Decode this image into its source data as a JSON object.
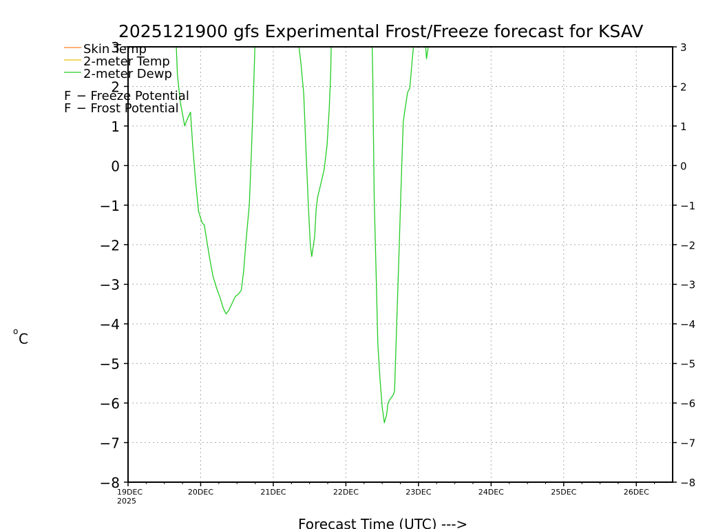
{
  "chart_data": {
    "type": "line",
    "title": "2025121900 gfs Experimental Frost/Freeze forecast for KSAV",
    "xlabel": "Forecast Time (UTC) --->",
    "ylabel_unit": "C",
    "ylabel_degree": "o",
    "ylim": [
      -8,
      3
    ],
    "xlim": [
      0,
      7.5
    ],
    "y_ticks": [
      3,
      2,
      1,
      0,
      -1,
      -2,
      -3,
      -4,
      -5,
      -6,
      -7,
      -8
    ],
    "y_tick_labels": [
      "3",
      "2",
      "1",
      "0",
      "−1",
      "−2",
      "−3",
      "−4",
      "−5",
      "−6",
      "−7",
      "−8"
    ],
    "x_ticks": [
      {
        "x": 0,
        "label": "19DEC",
        "sublabel": "2025"
      },
      {
        "x": 1,
        "label": "20DEC"
      },
      {
        "x": 2,
        "label": "21DEC"
      },
      {
        "x": 3,
        "label": "22DEC"
      },
      {
        "x": 4,
        "label": "23DEC"
      },
      {
        "x": 5,
        "label": "24DEC"
      },
      {
        "x": 6,
        "label": "25DEC"
      },
      {
        "x": 7,
        "label": "26DEC"
      }
    ],
    "grid": true,
    "legend": [
      {
        "label": "Skin Temp",
        "color": "#ff7f27"
      },
      {
        "label": "2-meter Temp",
        "color": "#e8c000"
      },
      {
        "label": "2-meter Dewp",
        "color": "#22cc22"
      }
    ],
    "potential_legend": [
      {
        "marker": "F",
        "label": " − Freeze Potential",
        "color": "#cc2299"
      },
      {
        "marker": "F",
        "label": " − Frost Potential",
        "color": "#5555ff"
      }
    ],
    "series": [
      {
        "name": "2-meter Dewp",
        "color": "#22cc22",
        "segments": [
          [
            [
              0.66,
              3.2
            ],
            [
              0.68,
              2.3
            ],
            [
              0.72,
              1.6
            ],
            [
              0.78,
              1.0
            ],
            [
              0.81,
              1.15
            ],
            [
              0.86,
              1.35
            ],
            [
              0.89,
              0.5
            ],
            [
              0.93,
              -0.4
            ],
            [
              0.97,
              -1.15
            ],
            [
              1.02,
              -1.45
            ],
            [
              1.05,
              -1.5
            ],
            [
              1.12,
              -2.3
            ],
            [
              1.17,
              -2.8
            ],
            [
              1.22,
              -3.1
            ],
            [
              1.27,
              -3.35
            ],
            [
              1.31,
              -3.6
            ],
            [
              1.35,
              -3.75
            ],
            [
              1.39,
              -3.65
            ],
            [
              1.44,
              -3.45
            ],
            [
              1.48,
              -3.3
            ],
            [
              1.52,
              -3.25
            ],
            [
              1.56,
              -3.15
            ],
            [
              1.59,
              -2.7
            ],
            [
              1.63,
              -1.8
            ],
            [
              1.67,
              -1.0
            ],
            [
              1.7,
              0.4
            ],
            [
              1.73,
              2.0
            ],
            [
              1.75,
              3.2
            ]
          ],
          [
            [
              2.34,
              3.2
            ],
            [
              2.38,
              2.6
            ],
            [
              2.42,
              1.8
            ],
            [
              2.45,
              0.4
            ],
            [
              2.48,
              -0.9
            ],
            [
              2.51,
              -2.0
            ],
            [
              2.53,
              -2.3
            ],
            [
              2.57,
              -1.8
            ],
            [
              2.59,
              -1.1
            ],
            [
              2.61,
              -0.8
            ],
            [
              2.65,
              -0.5
            ],
            [
              2.7,
              -0.1
            ],
            [
              2.74,
              0.5
            ],
            [
              2.77,
              1.4
            ],
            [
              2.79,
              2.3
            ],
            [
              2.8,
              3.2
            ]
          ],
          [
            [
              3.36,
              3.2
            ],
            [
              3.37,
              2.3
            ],
            [
              3.39,
              -0.8
            ],
            [
              3.42,
              -3.0
            ],
            [
              3.44,
              -4.5
            ],
            [
              3.47,
              -5.4
            ],
            [
              3.5,
              -6.1
            ],
            [
              3.53,
              -6.5
            ],
            [
              3.56,
              -6.3
            ],
            [
              3.58,
              -6.0
            ],
            [
              3.61,
              -5.9
            ],
            [
              3.65,
              -5.8
            ],
            [
              3.67,
              -5.7
            ],
            [
              3.7,
              -4.0
            ],
            [
              3.73,
              -2.3
            ],
            [
              3.76,
              -0.5
            ],
            [
              3.79,
              1.1
            ],
            [
              3.82,
              1.5
            ],
            [
              3.85,
              1.85
            ],
            [
              3.88,
              1.95
            ],
            [
              3.91,
              2.6
            ],
            [
              3.94,
              3.2
            ]
          ],
          [
            [
              4.09,
              3.2
            ],
            [
              4.1,
              2.95
            ],
            [
              4.11,
              2.7
            ],
            [
              4.13,
              2.95
            ],
            [
              4.14,
              3.2
            ]
          ]
        ]
      }
    ]
  }
}
